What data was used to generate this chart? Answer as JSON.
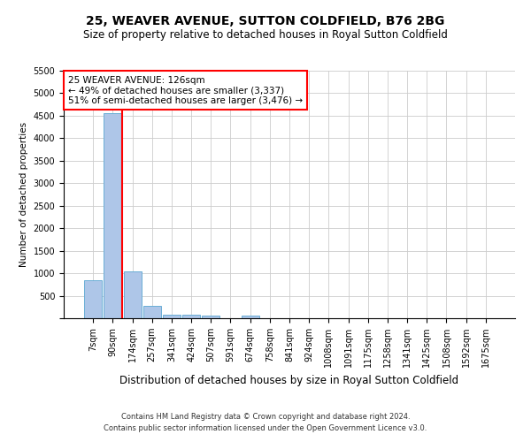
{
  "title": "25, WEAVER AVENUE, SUTTON COLDFIELD, B76 2BG",
  "subtitle": "Size of property relative to detached houses in Royal Sutton Coldfield",
  "xlabel": "Distribution of detached houses by size in Royal Sutton Coldfield",
  "ylabel": "Number of detached properties",
  "footnote1": "Contains HM Land Registry data © Crown copyright and database right 2024.",
  "footnote2": "Contains public sector information licensed under the Open Government Licence v3.0.",
  "categories": [
    "7sqm",
    "90sqm",
    "174sqm",
    "257sqm",
    "341sqm",
    "424sqm",
    "507sqm",
    "591sqm",
    "674sqm",
    "758sqm",
    "841sqm",
    "924sqm",
    "1008sqm",
    "1091sqm",
    "1175sqm",
    "1258sqm",
    "1341sqm",
    "1425sqm",
    "1508sqm",
    "1592sqm",
    "1675sqm"
  ],
  "values": [
    850,
    4550,
    1050,
    280,
    80,
    70,
    60,
    0,
    50,
    0,
    0,
    0,
    0,
    0,
    0,
    0,
    0,
    0,
    0,
    0,
    0
  ],
  "bar_color": "#aec6e8",
  "bar_edge_color": "#6aaed6",
  "vline_color": "red",
  "vline_pos": 1.5,
  "annotation_text": "25 WEAVER AVENUE: 126sqm\n← 49% of detached houses are smaller (3,337)\n51% of semi-detached houses are larger (3,476) →",
  "annotation_box_color": "white",
  "annotation_box_edge": "red",
  "ylim": [
    0,
    5500
  ],
  "yticks": [
    0,
    500,
    1000,
    1500,
    2000,
    2500,
    3000,
    3500,
    4000,
    4500,
    5000,
    5500
  ],
  "background_color": "white",
  "grid_color": "#cccccc",
  "title_fontsize": 10,
  "subtitle_fontsize": 8.5,
  "xlabel_fontsize": 8.5,
  "ylabel_fontsize": 7.5,
  "tick_fontsize": 7,
  "annotation_fontsize": 7.5,
  "footnote_fontsize": 6
}
